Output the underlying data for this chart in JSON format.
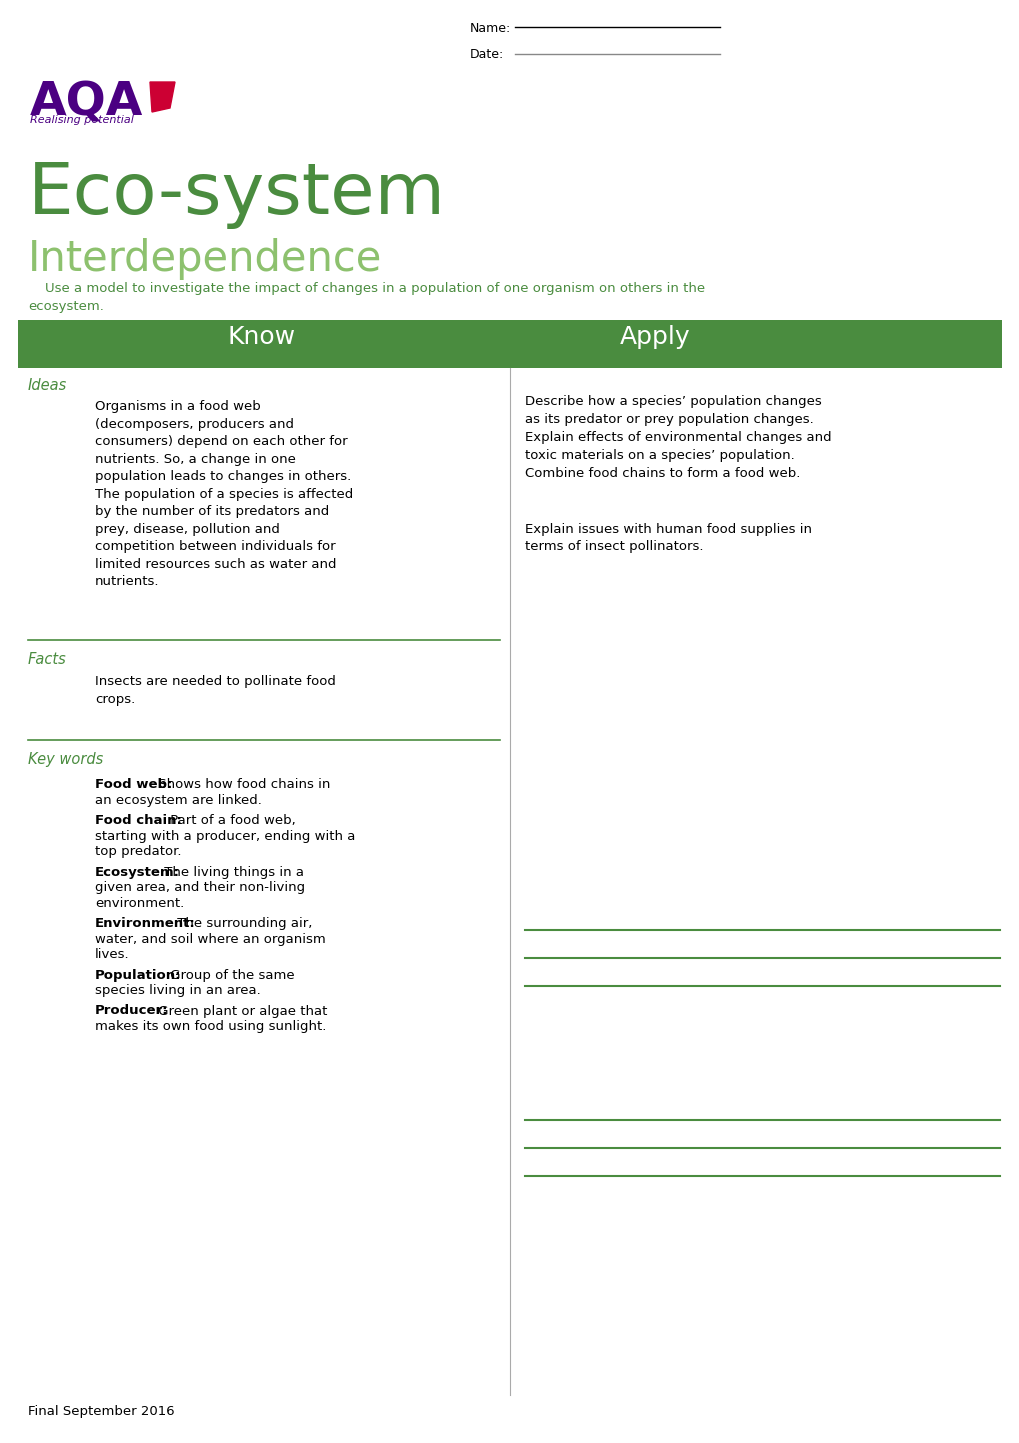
{
  "page_bg": "#ffffff",
  "page_width": 10.2,
  "page_height": 14.43,
  "name_label": "Name:",
  "date_label": "Date:",
  "aqa_text_color": "#4B0082",
  "aqa_red_color": "#CC0033",
  "realising_text": "Realising potential",
  "title_main": "Eco-system",
  "title_main_color": "#4a8c3f",
  "title_sub": "Interdependence",
  "title_sub_color": "#8dc16e",
  "subtitle_text": "    Use a model to investigate the impact of changes in a population of one organism on others in the\necosystem.",
  "subtitle_color": "#4a8c3f",
  "header_bg": "#4a8c3f",
  "know_header": "Know",
  "apply_header": "Apply",
  "section_color": "#4a8c3f",
  "ideas_label": "Ideas",
  "ideas_text": "Organisms in a food web\n(decomposers, producers and\nconsumers) depend on each other for\nnutrients. So, a change in one\npopulation leads to changes in others.\nThe population of a species is affected\nby the number of its predators and\nprey, disease, pollution and\ncompetition between individuals for\nlimited resources such as water and\nnutrients.",
  "facts_label": "Facts",
  "facts_text": "Insects are needed to pollinate food\ncrops.",
  "keywords_label": "Key words",
  "keywords": [
    {
      "term": "Food web:",
      "definition": " Shows how food chains in\nan ecosystem are linked."
    },
    {
      "term": "Food chain:",
      "definition": " Part of a food web,\nstarting with a producer, ending with a\ntop predator."
    },
    {
      "term": "Ecosystem:",
      "definition": " The living things in a\ngiven area, and their non-living\nenvironment."
    },
    {
      "term": "Environment:",
      "definition": " The surrounding air,\nwater, and soil where an organism\nlives."
    },
    {
      "term": "Population:",
      "definition": " Group of the same\nspecies living in an area."
    },
    {
      "term": "Producer:",
      "definition": " Green plant or algae that\nmakes its own food using sunlight."
    }
  ],
  "apply_items_top": [
    "Describe how a species’ population changes\nas its predator or prey population changes.",
    "Explain effects of environmental changes and\ntoxic materials on a species’ population.",
    "Combine food chains to form a food web."
  ],
  "apply_item_gap": true,
  "apply_items_bottom": [
    "Explain issues with human food supplies in\nterms of insect pollinators."
  ],
  "footer_text": "Final September 2016",
  "divider_color": "#4a8c3f",
  "line_color": "#4a8c3f",
  "col_divider_color": "#aaaaaa"
}
